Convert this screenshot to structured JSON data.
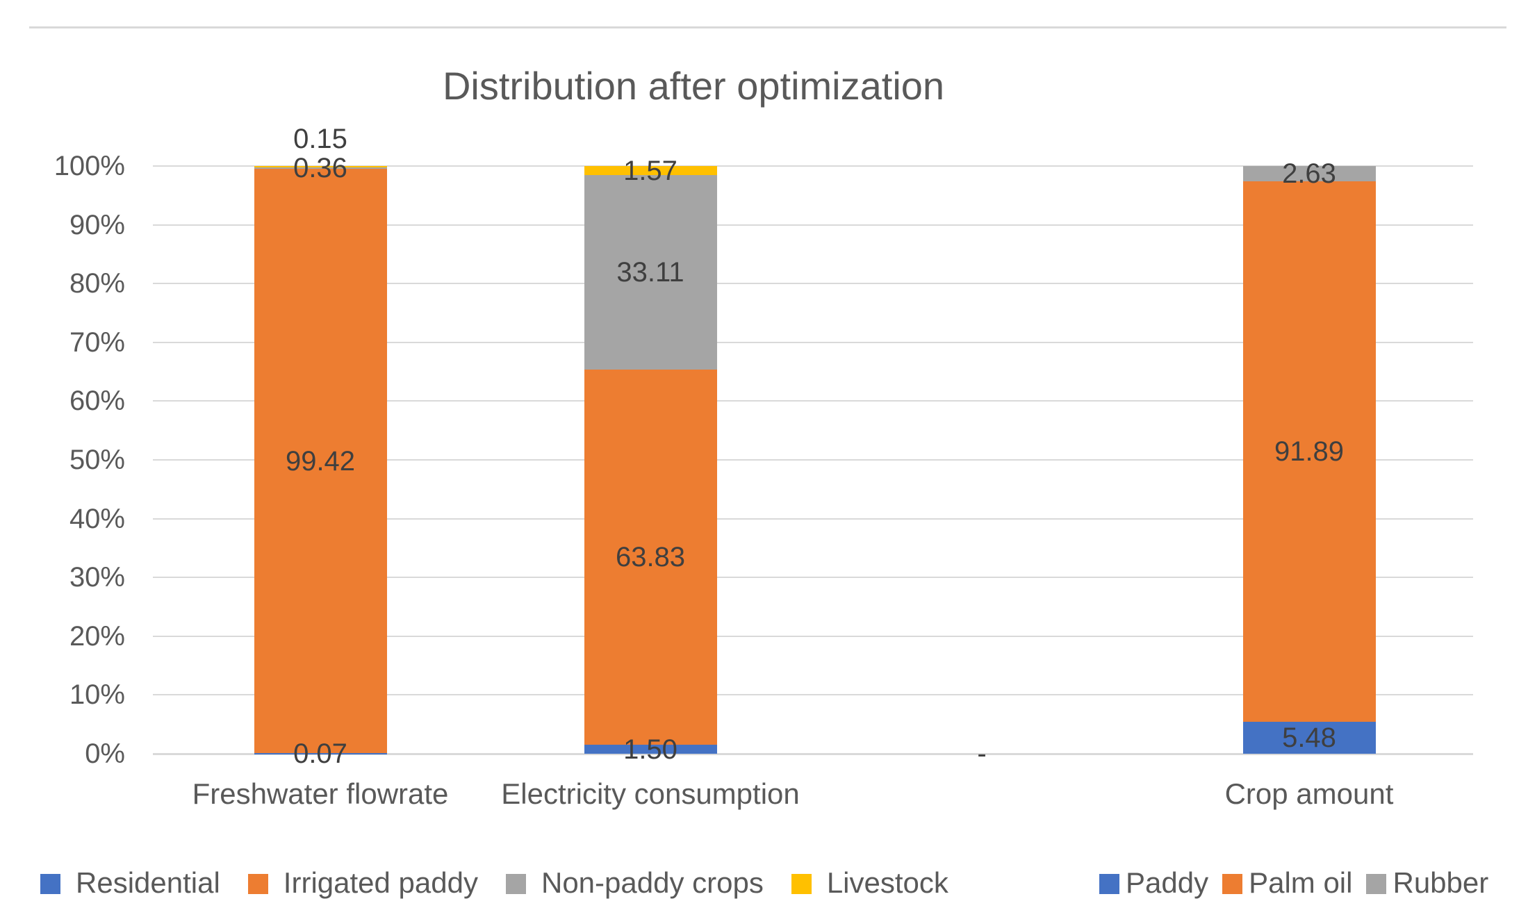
{
  "chart_data": {
    "type": "bar",
    "stacked": true,
    "title": "Distribution after optimization",
    "xlabel": "",
    "ylabel": "",
    "ylim": [
      0,
      100
    ],
    "grid": true,
    "legend_position": "bottom",
    "yticks": [
      "0%",
      "10%",
      "20%",
      "30%",
      "40%",
      "50%",
      "60%",
      "70%",
      "80%",
      "90%",
      "100%"
    ],
    "colors": {
      "blue": "#4472C4",
      "orange": "#ED7D31",
      "gray": "#A5A5A5",
      "yellow": "#FFC000",
      "gridline": "#D9D9D9",
      "axis_text": "#595959",
      "data_label_text": "#3F3F3F"
    },
    "columns": [
      {
        "category": "Freshwater flowrate",
        "stack": [
          {
            "series": "Residential",
            "value": 0.07,
            "label": "0.07",
            "color": "#4472C4"
          },
          {
            "series": "Irrigated paddy",
            "value": 99.42,
            "label": "99.42",
            "color": "#ED7D31"
          },
          {
            "series": "Non-paddy crops",
            "value": 0.36,
            "label": "0.36",
            "color": "#A5A5A5"
          },
          {
            "series": "Livestock",
            "value": 0.15,
            "label": "0.15",
            "color": "#FFC000"
          }
        ]
      },
      {
        "category": "Electricity consumption",
        "stack": [
          {
            "series": "Residential",
            "value": 1.5,
            "label": "1.50",
            "color": "#4472C4"
          },
          {
            "series": "Irrigated paddy",
            "value": 63.83,
            "label": "63.83",
            "color": "#ED7D31"
          },
          {
            "series": "Non-paddy crops",
            "value": 33.11,
            "label": "33.11",
            "color": "#A5A5A5"
          },
          {
            "series": "Livestock",
            "value": 1.57,
            "label": "1.57",
            "color": "#FFC000"
          }
        ]
      },
      {
        "category": "",
        "empty_label": "-",
        "stack": []
      },
      {
        "category": "Crop amount",
        "stack": [
          {
            "series": "Paddy",
            "value": 5.48,
            "label": "5.48",
            "color": "#4472C4"
          },
          {
            "series": "Palm oil",
            "value": 91.89,
            "label": "91.89",
            "color": "#ED7D31"
          },
          {
            "series": "Rubber",
            "value": 2.63,
            "label": "2.63",
            "color": "#A5A5A5"
          }
        ]
      }
    ],
    "legends": [
      {
        "position": "bottom-left",
        "items": [
          {
            "label": "Residential",
            "color": "#4472C4"
          },
          {
            "label": "Irrigated paddy",
            "color": "#ED7D31"
          },
          {
            "label": "Non-paddy crops",
            "color": "#A5A5A5"
          },
          {
            "label": "Livestock",
            "color": "#FFC000"
          }
        ]
      },
      {
        "position": "bottom-right",
        "items": [
          {
            "label": "Paddy",
            "color": "#4472C4"
          },
          {
            "label": "Palm oil",
            "color": "#ED7D31"
          },
          {
            "label": "Rubber",
            "color": "#A5A5A5"
          }
        ]
      }
    ]
  }
}
